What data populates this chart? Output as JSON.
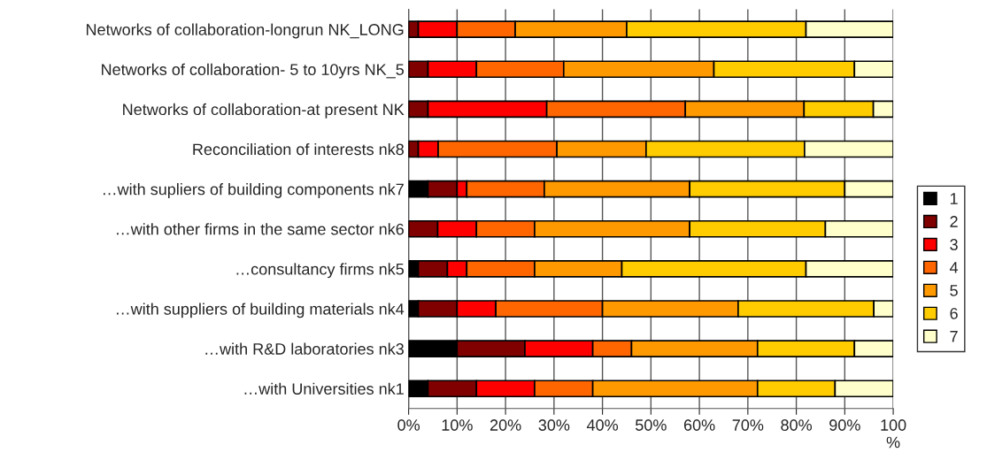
{
  "chart_data": {
    "type": "bar",
    "orientation": "horizontal",
    "stacked": true,
    "categories": [
      "Networks of collaboration-longrun NK_LONG",
      "Networks of collaboration- 5 to 10yrs NK_5",
      "Networks of collaboration-at present NK",
      "Reconciliation of interests nk8",
      "…with supliers of building components nk7",
      "…with other firms in the same sector nk6",
      "…consultancy firms nk5",
      "…with suppliers of building materials nk4",
      "…with R&D laboratories nk3",
      "…with Universities nk1"
    ],
    "series": [
      {
        "name": "1",
        "color": "#000000",
        "values": [
          0,
          0,
          0,
          0,
          4,
          0,
          2,
          2,
          10,
          4
        ]
      },
      {
        "name": "2",
        "color": "#800000",
        "values": [
          2,
          4,
          4,
          2,
          6,
          6,
          6,
          8,
          14,
          10
        ]
      },
      {
        "name": "3",
        "color": "#ff0000",
        "values": [
          8,
          10,
          24.5,
          4.1,
          2,
          8,
          4,
          8,
          14,
          12
        ]
      },
      {
        "name": "4",
        "color": "#ff6600",
        "values": [
          12,
          18,
          28.6,
          24.5,
          16,
          12,
          14,
          22,
          8,
          12
        ]
      },
      {
        "name": "5",
        "color": "#ff9900",
        "values": [
          23,
          31,
          24.5,
          18.4,
          30,
          32,
          18,
          28,
          26,
          34
        ]
      },
      {
        "name": "6",
        "color": "#ffcc00",
        "values": [
          37,
          29,
          14.3,
          32.7,
          32,
          28,
          38,
          28,
          20,
          16
        ]
      },
      {
        "name": "7",
        "color": "#ffffcc",
        "values": [
          18,
          8,
          4.1,
          18.3,
          10,
          14,
          18,
          4,
          8,
          12
        ]
      }
    ],
    "xlim": [
      0,
      100
    ],
    "xticks": [
      {
        "value": 0,
        "label": "0%"
      },
      {
        "value": 10,
        "label": "10%"
      },
      {
        "value": 20,
        "label": "20%"
      },
      {
        "value": 30,
        "label": "30%"
      },
      {
        "value": 40,
        "label": "40%"
      },
      {
        "value": 50,
        "label": "50%"
      },
      {
        "value": 60,
        "label": "60%"
      },
      {
        "value": 70,
        "label": "70%"
      },
      {
        "value": 80,
        "label": "80%"
      },
      {
        "value": 90,
        "label": "90%"
      },
      {
        "value": 100,
        "label": "100 %"
      }
    ],
    "grid": "x",
    "legend": "right"
  }
}
